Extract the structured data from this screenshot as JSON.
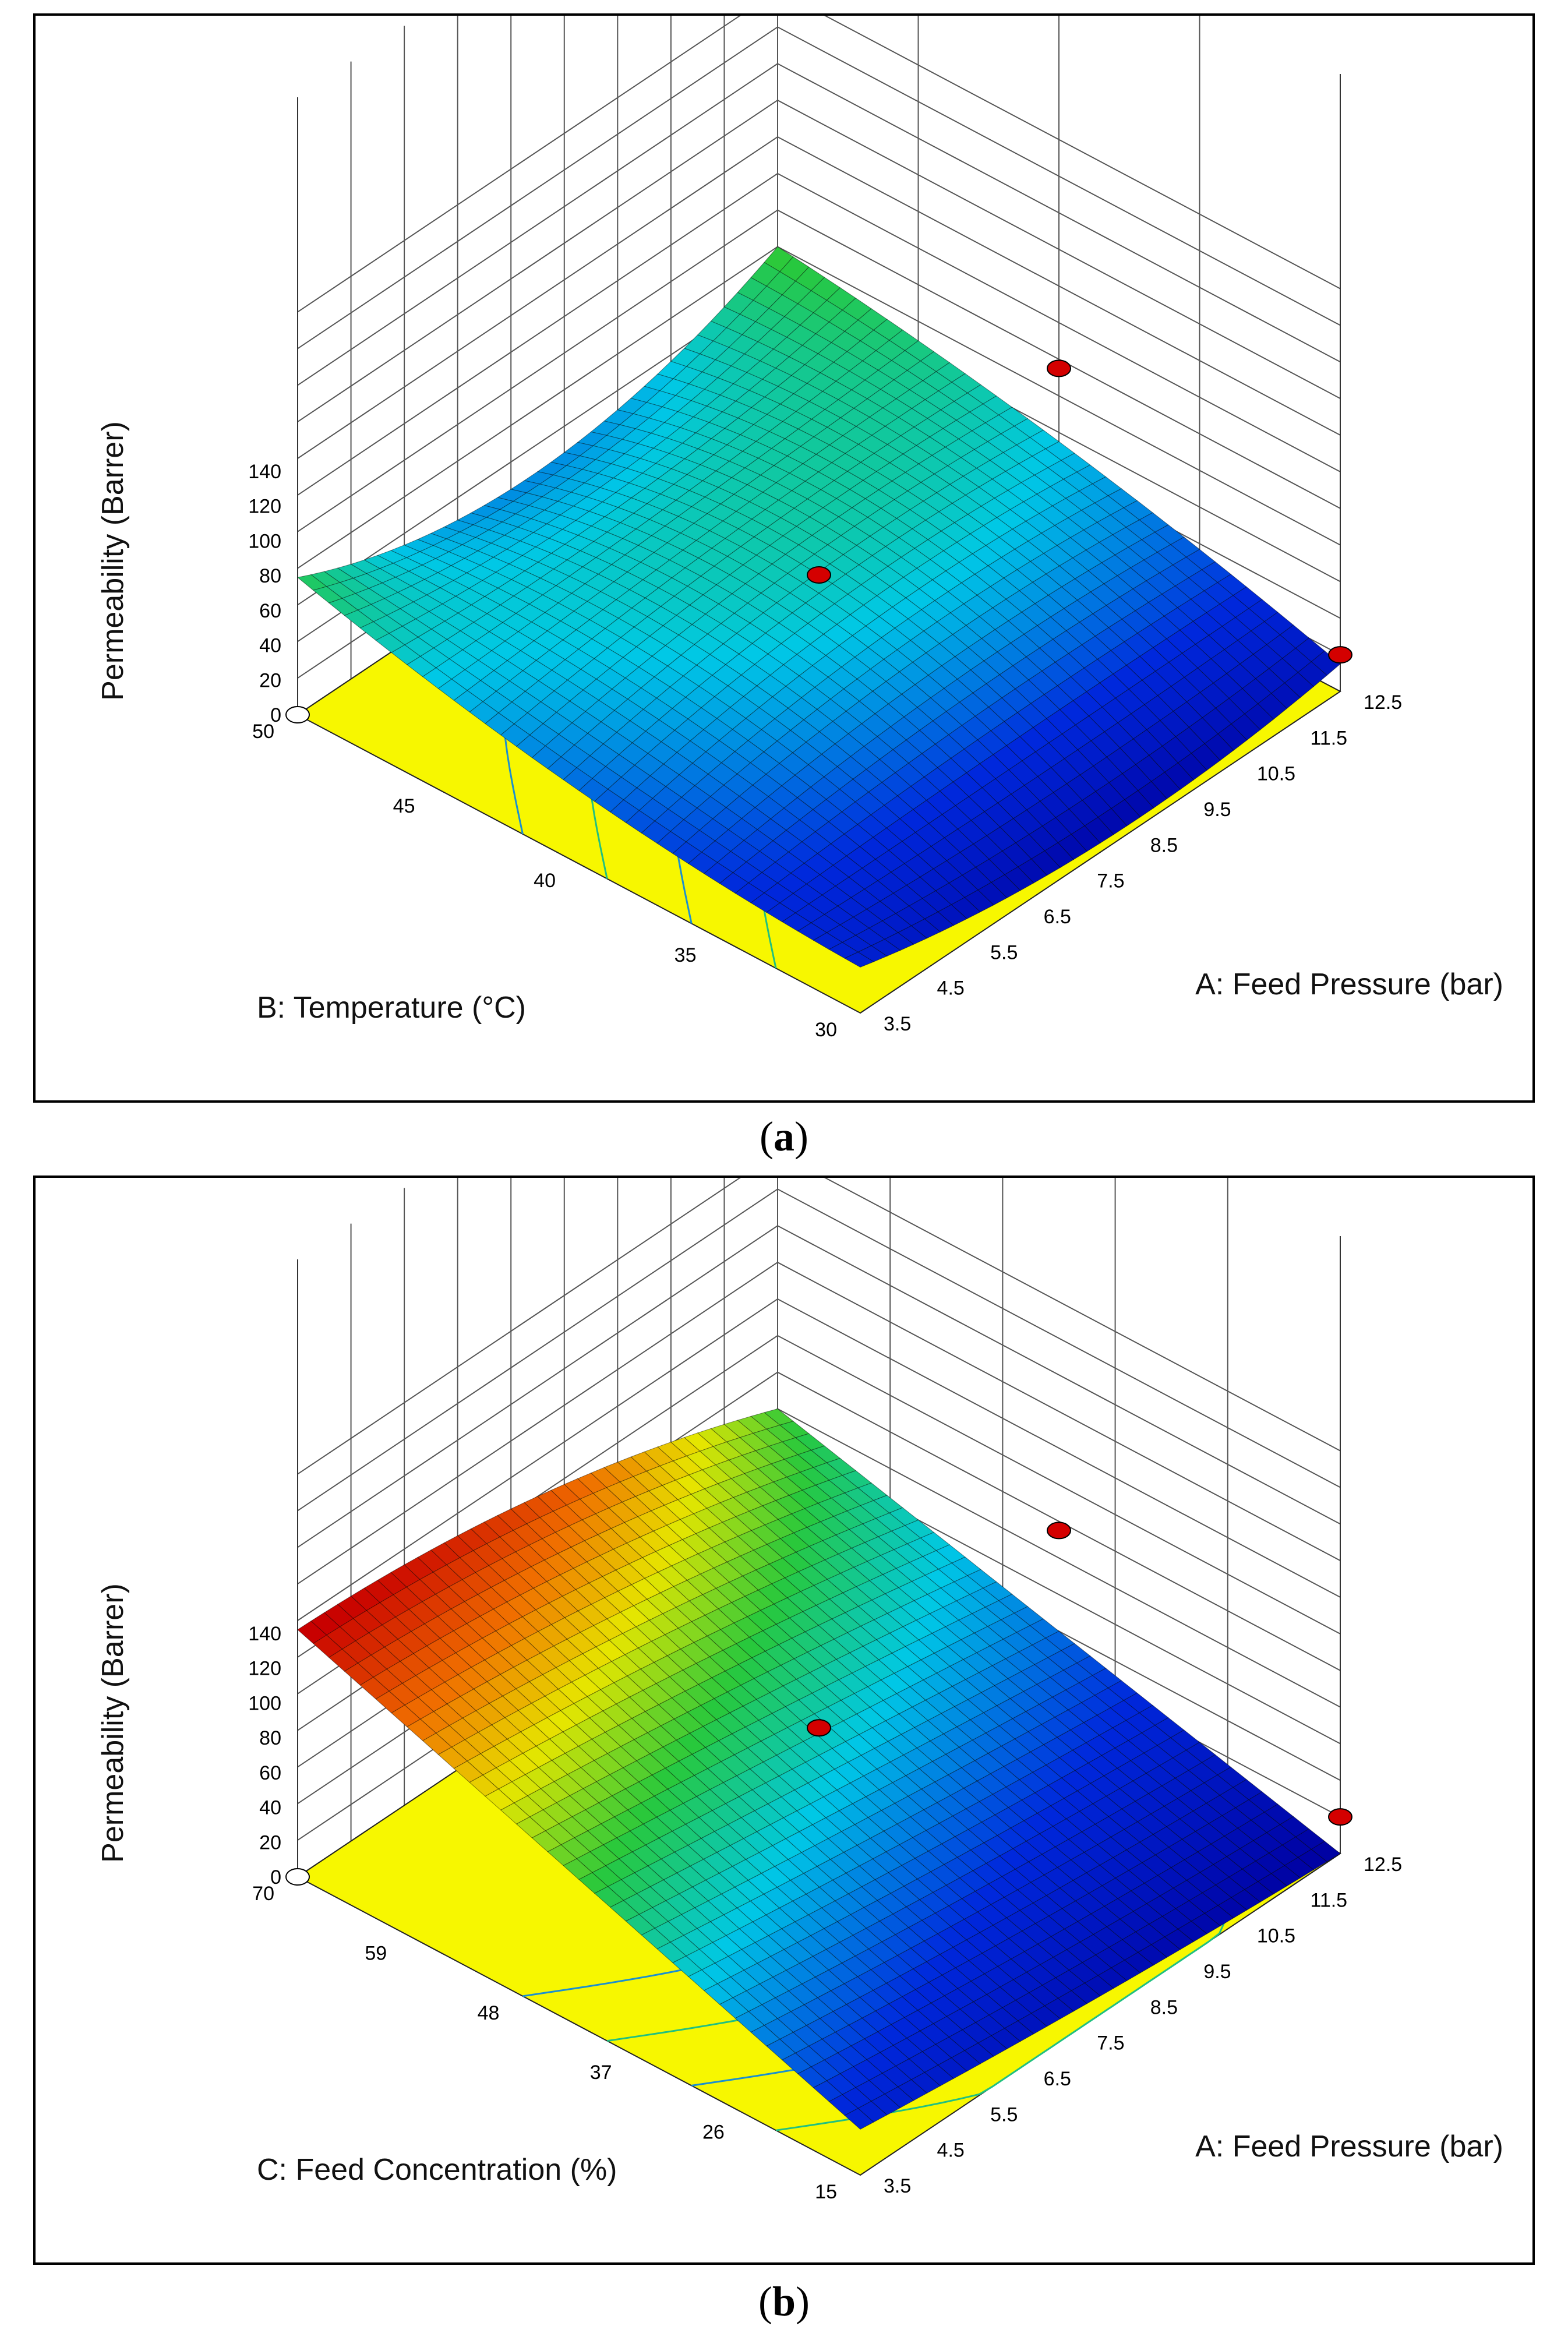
{
  "chart_data": [
    {
      "type": "surface",
      "panel_label": "a",
      "zlabel": "Permeability (Barrer)",
      "xlabel": "A: Feed Pressure (bar)",
      "ylabel": "B: Temperature (°C)",
      "z_ticks": [
        "0",
        "20",
        "40",
        "60",
        "80",
        "100",
        "120",
        "140"
      ],
      "x_ticks": [
        "3.5",
        "4.5",
        "5.5",
        "6.5",
        "7.5",
        "8.5",
        "9.5",
        "10.5",
        "11.5",
        "12.5"
      ],
      "y_ticks": [
        "30",
        "35",
        "40",
        "45",
        "50"
      ],
      "xlim": [
        3.5,
        12.5
      ],
      "ylim": [
        30,
        50
      ],
      "zlim": [
        0,
        140
      ],
      "corner_values": {
        "x3.5_y30": 25,
        "x12.5_y30": 15,
        "x3.5_y50": 75,
        "x12.5_y50": 80
      },
      "mid_edge_values": {
        "x8_y30": 5,
        "x8_y50": 45,
        "x3.5_y40": 40,
        "x12.5_y40": 55
      },
      "center_value": 60,
      "design_points": [
        {
          "x": 8,
          "y": 40,
          "z": 70,
          "color": "red"
        },
        {
          "x": 12.5,
          "y": 40,
          "z": 95,
          "color": "red"
        },
        {
          "x": 12.5,
          "y": 30,
          "z": 20,
          "color": "red"
        },
        {
          "x": 3.5,
          "y": 50,
          "z": 0,
          "color": "white"
        }
      ],
      "colors": {
        "floor": "#f7f700",
        "low": "#0000c8",
        "high": "#d00000"
      }
    },
    {
      "type": "surface",
      "panel_label": "b",
      "zlabel": "Permeability (Barrer)",
      "xlabel": "A: Feed Pressure (bar)",
      "ylabel": "C: Feed Concentration (%)",
      "z_ticks": [
        "0",
        "20",
        "40",
        "60",
        "80",
        "100",
        "120",
        "140"
      ],
      "x_ticks": [
        "3.5",
        "4.5",
        "5.5",
        "6.5",
        "7.5",
        "8.5",
        "9.5",
        "10.5",
        "11.5",
        "12.5"
      ],
      "y_ticks": [
        "15",
        "26",
        "37",
        "48",
        "59",
        "70"
      ],
      "xlim": [
        3.5,
        12.5
      ],
      "ylim": [
        15,
        70
      ],
      "zlim": [
        0,
        140
      ],
      "corner_values": {
        "x3.5_y15": 25,
        "x12.5_y15": 0,
        "x3.5_y70": 135,
        "x12.5_y70": 80
      },
      "mid_edge_values": {
        "x8_y15": 10,
        "x8_y70": 120,
        "x3.5_y42.5": 80,
        "x12.5_y42.5": 40
      },
      "center_value": 60,
      "design_points": [
        {
          "x": 8,
          "y": 42.5,
          "z": 75,
          "color": "red"
        },
        {
          "x": 12.5,
          "y": 42.5,
          "z": 95,
          "color": "red"
        },
        {
          "x": 12.5,
          "y": 15,
          "z": 20,
          "color": "red"
        },
        {
          "x": 3.5,
          "y": 70,
          "z": 0,
          "color": "white"
        }
      ],
      "colors": {
        "floor": "#f7f700",
        "low": "#0000c8",
        "high": "#d00000"
      }
    }
  ]
}
